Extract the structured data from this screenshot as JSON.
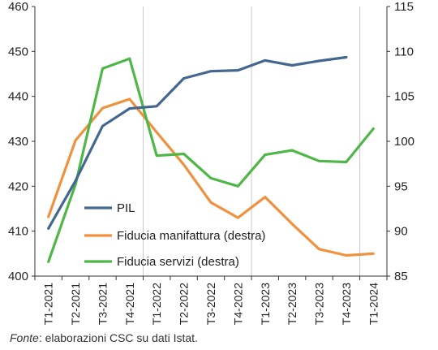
{
  "chart_data": {
    "type": "line",
    "categories": [
      "T1-2021",
      "T2-2021",
      "T3-2021",
      "T4-2021",
      "T1-2022",
      "T2-2022",
      "T3-2022",
      "T4-2022",
      "T1-2023",
      "T2-2023",
      "T3-2023",
      "T4-2023",
      "T1-2024"
    ],
    "y_left": {
      "min": 400,
      "max": 460,
      "step": 10
    },
    "y_right": {
      "min": 85,
      "max": 115,
      "step": 5
    },
    "series": [
      {
        "name": "PIL",
        "axis": "left",
        "color": "#44678F",
        "values": [
          410.6,
          421.2,
          433.4,
          437.3,
          437.8,
          444.0,
          445.6,
          445.8,
          448.0,
          446.9,
          447.9,
          448.7,
          null
        ]
      },
      {
        "name": "Fiducia manifattura (destra)",
        "axis": "right",
        "color": "#F0913E",
        "values": [
          91.6,
          100.1,
          103.7,
          104.7,
          101.0,
          97.4,
          93.2,
          91.5,
          93.8,
          90.8,
          88.0,
          87.3,
          87.5
        ]
      },
      {
        "name": "Fiducia servizi (destra)",
        "axis": "right",
        "color": "#4EB748",
        "values": [
          86.6,
          95.2,
          108.1,
          109.2,
          98.4,
          98.6,
          95.9,
          95.0,
          98.5,
          99.0,
          97.8,
          97.7,
          101.4
        ]
      }
    ],
    "vertical_lines_after": [
      "T4-2021",
      "T4-2022",
      "T4-2023"
    ],
    "legend_position": "center-left",
    "grid": false
  },
  "footnote": {
    "source_label": "Fonte",
    "text": ": elaborazioni CSC su dati Istat."
  }
}
